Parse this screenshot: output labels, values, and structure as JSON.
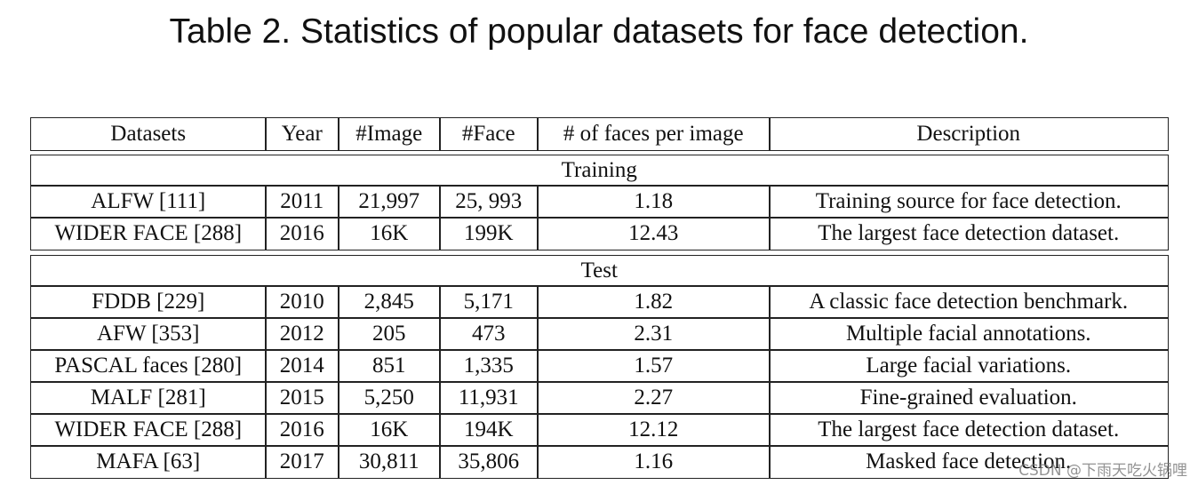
{
  "title": "Table 2.  Statistics of popular datasets for face detection.",
  "table": {
    "columns": [
      "Datasets",
      "Year",
      "#Image",
      "#Face",
      "# of faces per image",
      "Description"
    ],
    "sections": [
      {
        "label": "Training",
        "rows": [
          [
            "ALFW [111]",
            "2011",
            "21,997",
            "25, 993",
            "1.18",
            "Training source for face detection."
          ],
          [
            "WIDER FACE [288]",
            "2016",
            "16K",
            "199K",
            "12.43",
            "The largest face detection dataset."
          ]
        ]
      },
      {
        "label": "Test",
        "rows": [
          [
            "FDDB [229]",
            "2010",
            "2,845",
            "5,171",
            "1.82",
            "A classic face detection benchmark."
          ],
          [
            "AFW [353]",
            "2012",
            "205",
            "473",
            "2.31",
            "Multiple facial annotations."
          ],
          [
            "PASCAL faces [280]",
            "2014",
            "851",
            "1,335",
            "1.57",
            "Large facial variations."
          ],
          [
            "MALF [281]",
            "2015",
            "5,250",
            "11,931",
            "2.27",
            "Fine-grained evaluation."
          ],
          [
            "WIDER FACE [288]",
            "2016",
            "16K",
            "194K",
            "12.12",
            "The largest face detection dataset."
          ],
          [
            "MAFA [63]",
            "2017",
            "30,811",
            "35,806",
            "1.16",
            "Masked face detection."
          ]
        ]
      }
    ]
  },
  "watermark": "CSDN @下雨天吃火锅哩"
}
